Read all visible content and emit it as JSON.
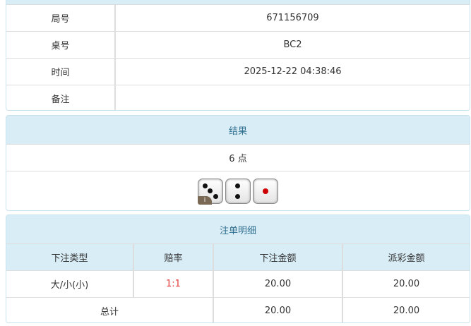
{
  "info": {
    "rows": [
      {
        "label": "局号",
        "value": "671156709"
      },
      {
        "label": "桌号",
        "value": "BC2"
      },
      {
        "label": "时间",
        "value": "2025-12-22 04:38:46"
      },
      {
        "label": "备注",
        "value": ""
      }
    ]
  },
  "result": {
    "title": "结果",
    "points": "6 点",
    "dice": [
      3,
      2,
      1
    ],
    "info_badge": "i"
  },
  "bets": {
    "title": "注单明细",
    "columns": [
      "下注类型",
      "赔率",
      "下注金额",
      "派彩金额"
    ],
    "rows": [
      {
        "type": "大/小(小)",
        "odds": "1:1",
        "amount": "20.00",
        "payout": "20.00"
      }
    ],
    "total": {
      "label": "总计",
      "amount": "20.00",
      "payout": "20.00"
    }
  },
  "colors": {
    "header_bg": "#d9edf7",
    "header_text": "#31708f",
    "odds": "#e4393c"
  }
}
